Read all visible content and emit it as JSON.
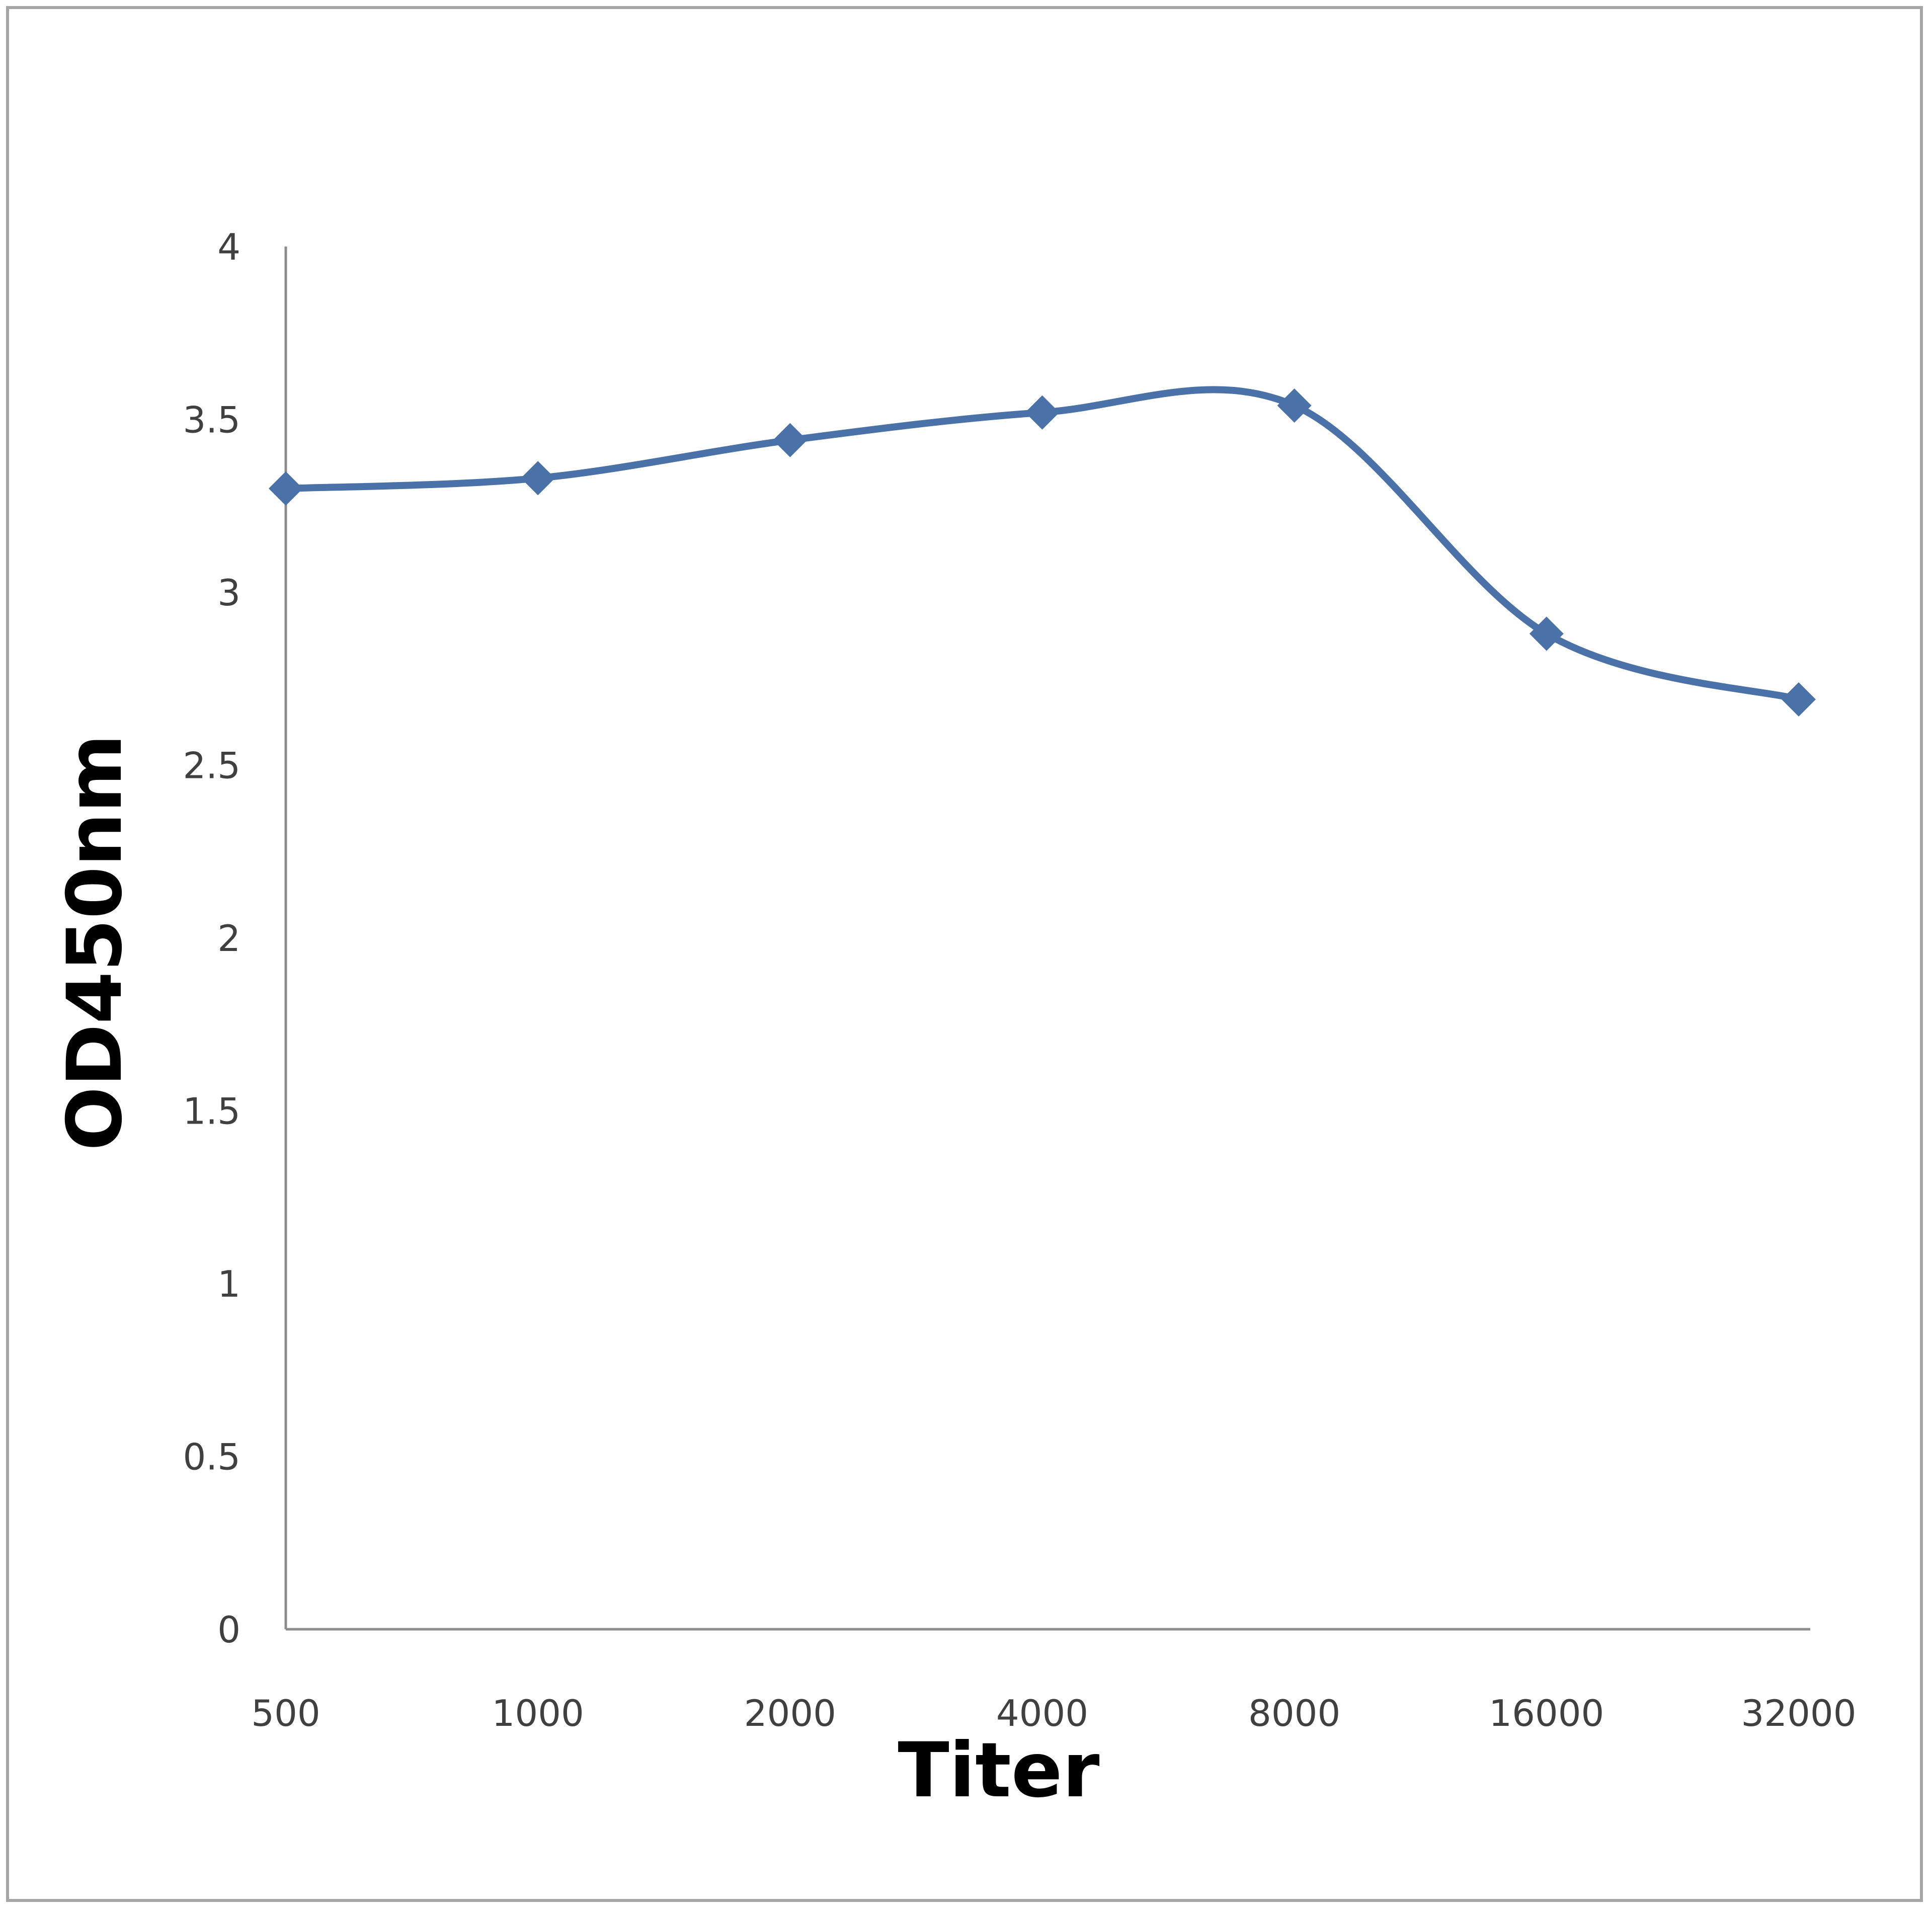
{
  "chart_data": {
    "type": "line",
    "title": "",
    "xlabel": "Titer",
    "ylabel": "OD450nm",
    "categories": [
      "500",
      "1000",
      "2000",
      "4000",
      "8000",
      "16000",
      "32000"
    ],
    "series": [
      {
        "name": "OD450nm",
        "color": "#4a72a8",
        "marker": "diamond",
        "smooth": true,
        "values": [
          3.3,
          3.33,
          3.44,
          3.52,
          3.54,
          2.88,
          2.69
        ]
      }
    ],
    "yticks": [
      "0",
      "0.5",
      "1",
      "1.5",
      "2",
      "2.5",
      "3",
      "3.5",
      "4"
    ],
    "ylim": [
      0,
      4
    ],
    "grid": false,
    "legend": "none"
  }
}
